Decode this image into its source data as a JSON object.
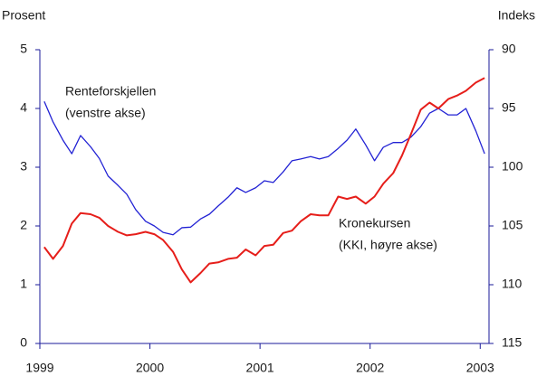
{
  "chart_data": {
    "type": "line",
    "y_label": "Prosent",
    "y2_label": "Indeks",
    "annotations": [
      "Renteforskjellen",
      "(venstre akse)",
      "Kronekursen",
      "(KKI, høyre akse)"
    ],
    "x": [
      1999.04,
      1999.12,
      1999.21,
      1999.29,
      1999.37,
      1999.46,
      1999.54,
      1999.62,
      1999.71,
      1999.79,
      1999.87,
      1999.96,
      2000.04,
      2000.12,
      2000.21,
      2000.29,
      2000.37,
      2000.46,
      2000.54,
      2000.62,
      2000.71,
      2000.79,
      2000.87,
      2000.96,
      2001.04,
      2001.12,
      2001.21,
      2001.29,
      2001.37,
      2001.46,
      2001.54,
      2001.62,
      2001.71,
      2001.79,
      2001.87,
      2001.96,
      2002.04,
      2002.12,
      2002.21,
      2002.29,
      2002.37,
      2002.46,
      2002.54,
      2002.62,
      2002.71,
      2002.79,
      2002.87,
      2002.96,
      2003.04
    ],
    "series": [
      {
        "name": "Renteforskjellen",
        "color": "#2222d4",
        "values": [
          4.12,
          3.77,
          3.46,
          3.23,
          3.54,
          3.35,
          3.15,
          2.85,
          2.69,
          2.54,
          2.28,
          2.08,
          2.0,
          1.89,
          1.85,
          1.97,
          1.98,
          2.12,
          2.2,
          2.34,
          2.49,
          2.65,
          2.57,
          2.65,
          2.77,
          2.74,
          2.92,
          3.11,
          3.14,
          3.18,
          3.14,
          3.18,
          3.32,
          3.46,
          3.65,
          3.38,
          3.11,
          3.34,
          3.42,
          3.42,
          3.51,
          3.69,
          3.92,
          4.0,
          3.89,
          3.89,
          4.0,
          3.62,
          3.23
        ]
      },
      {
        "name": "Kronekursen",
        "color": "#e61e1a",
        "axis": "y2",
        "values": [
          106.8,
          107.8,
          106.7,
          104.8,
          103.9,
          104.0,
          104.3,
          105.0,
          105.5,
          105.8,
          105.7,
          105.5,
          105.7,
          106.2,
          107.2,
          108.7,
          109.8,
          109.0,
          108.2,
          108.1,
          107.8,
          107.7,
          107.0,
          107.5,
          106.7,
          106.6,
          105.6,
          105.4,
          104.6,
          104.0,
          104.1,
          104.1,
          102.5,
          102.7,
          102.5,
          103.1,
          102.5,
          101.4,
          100.5,
          99.0,
          97.2,
          95.1,
          94.5,
          95.0,
          94.2,
          93.9,
          93.5,
          92.8,
          92.4
        ]
      }
    ],
    "xlim": [
      1999,
      2003.08
    ],
    "xticks": [
      1999,
      2000,
      2001,
      2002,
      2003
    ],
    "ylim": [
      0,
      5
    ],
    "yticks": [
      0,
      1,
      2,
      3,
      4,
      5
    ],
    "y2lim": [
      115,
      90
    ],
    "y2ticks": [
      90,
      95,
      100,
      105,
      110,
      115
    ]
  }
}
